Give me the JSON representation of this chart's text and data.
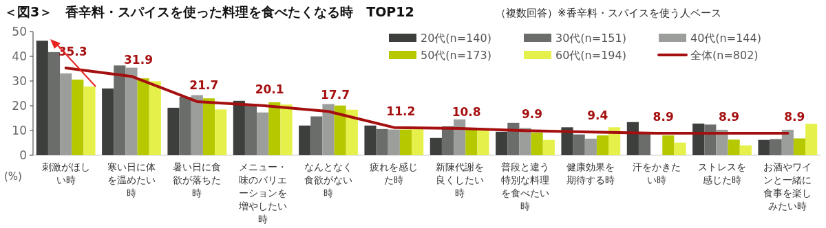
{
  "chart_data": {
    "type": "bar",
    "title": "＜図3＞　香辛料・スパイスを使った料理を食べたくなる時　TOP12",
    "subtitle": "（複数回答）※香辛料・スパイスを使う人ベース",
    "ylabel": "(%)",
    "categories": [
      "刺激がほしい時",
      "寒い日に体を温めたい時",
      "暑い日に食欲が落ちた時",
      "メニュー・味のバリエーションを増やしたい時",
      "なんとなく食欲がない時",
      "疲れを感じた時",
      "新陳代謝を良くしたい時",
      "普段と違う特別な料理を食べたい時",
      "健康効果を期待する時",
      "汗をかきたい時",
      "ストレスを感じた時",
      "お酒やワインと一緒に食事を楽しみたい時"
    ],
    "series": [
      {
        "name": "20代(n=140)",
        "color": "#3c3f3c",
        "values": [
          46.3,
          27.0,
          19.2,
          22.0,
          12.0,
          12.0,
          7.0,
          9.5,
          11.3,
          13.4,
          12.8,
          6.2
        ]
      },
      {
        "name": "30代(n=151)",
        "color": "#6b6d6b",
        "values": [
          41.7,
          36.3,
          23.6,
          20.5,
          15.7,
          10.6,
          11.7,
          13.1,
          8.4,
          9.1,
          12.4,
          6.5
        ]
      },
      {
        "name": "40代(n=144)",
        "color": "#9c9e9c",
        "values": [
          33.1,
          35.4,
          24.3,
          17.3,
          20.7,
          10.4,
          14.5,
          11.0,
          6.7,
          null,
          10.3,
          10.3
        ]
      },
      {
        "name": "50代(n=173)",
        "color": "#b5c800",
        "values": [
          30.6,
          31.1,
          23.0,
          21.4,
          20.1,
          10.4,
          10.3,
          9.1,
          8.0,
          8.0,
          6.3,
          6.8
        ]
      },
      {
        "name": "60代(n=194)",
        "color": "#e6f04a",
        "values": [
          27.8,
          29.9,
          18.5,
          20.5,
          18.4,
          10.5,
          10.3,
          6.2,
          11.3,
          5.1,
          4.0,
          12.7
        ]
      },
      {
        "name": "全体(n=802)",
        "type": "line",
        "color": "#a50f0f",
        "values": [
          35.3,
          31.9,
          21.7,
          20.1,
          17.7,
          11.2,
          10.8,
          9.9,
          9.4,
          8.9,
          8.9,
          8.9
        ],
        "value_labels": [
          "35.3",
          "31.9",
          "21.7",
          "20.1",
          "17.7",
          "11.2",
          "10.8",
          "9.9",
          "9.4",
          "8.9",
          "8.9",
          "8.9"
        ]
      }
    ],
    "ylim": [
      0,
      50
    ],
    "yticks": [
      0,
      10,
      20,
      30,
      40,
      50
    ],
    "grid": false,
    "legend": "top right"
  }
}
